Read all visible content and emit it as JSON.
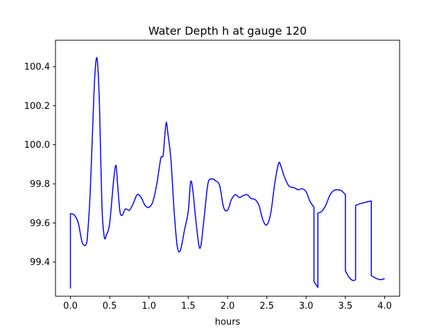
{
  "chart_data": {
    "type": "line",
    "title": "Water Depth h at gauge 120",
    "xlabel": "hours",
    "ylabel": "",
    "xlim": [
      -0.19,
      4.19
    ],
    "ylim": [
      99.225,
      100.535
    ],
    "xticks": [
      0.0,
      0.5,
      1.0,
      1.5,
      2.0,
      2.5,
      3.0,
      3.5,
      4.0
    ],
    "xtick_labels": [
      "0.0",
      "0.5",
      "1.0",
      "1.5",
      "2.0",
      "2.5",
      "3.0",
      "3.5",
      "4.0"
    ],
    "yticks": [
      99.4,
      99.6,
      99.8,
      100.0,
      100.2,
      100.4
    ],
    "ytick_labels": [
      "99.4",
      "99.6",
      "99.8",
      "100.0",
      "100.2",
      "100.4"
    ],
    "grid": false,
    "legend": "none",
    "series": [
      {
        "color": "#0000ff",
        "x": [
          0.0,
          0.0,
          0.05,
          0.1,
          0.15,
          0.2,
          0.22,
          0.25,
          0.28,
          0.31,
          0.34,
          0.37,
          0.4,
          0.43,
          0.46,
          0.5,
          0.55,
          0.58,
          0.6,
          0.63,
          0.66,
          0.7,
          0.75,
          0.8,
          0.85,
          0.9,
          0.95,
          1.0,
          1.05,
          1.1,
          1.15,
          1.18,
          1.2,
          1.22,
          1.24,
          1.28,
          1.32,
          1.36,
          1.4,
          1.45,
          1.5,
          1.53,
          1.56,
          1.6,
          1.65,
          1.7,
          1.75,
          1.8,
          1.85,
          1.9,
          1.95,
          2.0,
          2.05,
          2.1,
          2.15,
          2.2,
          2.25,
          2.3,
          2.35,
          2.4,
          2.45,
          2.5,
          2.55,
          2.6,
          2.65,
          2.68,
          2.72,
          2.78,
          2.85,
          2.9,
          2.95,
          3.0,
          3.05,
          3.1,
          3.1,
          3.15,
          3.15,
          3.2,
          3.25,
          3.3,
          3.35,
          3.4,
          3.45,
          3.5,
          3.5,
          3.55,
          3.6,
          3.63,
          3.63,
          3.7,
          3.75,
          3.8,
          3.83,
          3.83,
          3.9,
          3.95,
          4.0
        ],
        "y": [
          99.265,
          99.648,
          99.64,
          99.6,
          99.5,
          99.49,
          99.55,
          99.74,
          100.05,
          100.35,
          100.44,
          100.2,
          99.7,
          99.53,
          99.54,
          99.6,
          99.82,
          99.895,
          99.8,
          99.66,
          99.64,
          99.672,
          99.665,
          99.7,
          99.745,
          99.73,
          99.69,
          99.68,
          99.71,
          99.8,
          99.93,
          99.945,
          100.04,
          100.115,
          100.06,
          99.92,
          99.66,
          99.48,
          99.46,
          99.56,
          99.66,
          99.81,
          99.76,
          99.6,
          99.47,
          99.62,
          99.8,
          99.825,
          99.815,
          99.79,
          99.68,
          99.665,
          99.72,
          99.745,
          99.73,
          99.74,
          99.745,
          99.725,
          99.72,
          99.69,
          99.615,
          99.59,
          99.65,
          99.8,
          99.905,
          99.89,
          99.84,
          99.79,
          99.78,
          99.77,
          99.775,
          99.76,
          99.71,
          99.68,
          99.3,
          99.27,
          99.65,
          99.66,
          99.69,
          99.74,
          99.765,
          99.77,
          99.765,
          99.745,
          99.355,
          99.32,
          99.305,
          99.31,
          99.69,
          99.7,
          99.705,
          99.71,
          99.712,
          99.33,
          99.315,
          99.31,
          99.315
        ]
      }
    ]
  }
}
